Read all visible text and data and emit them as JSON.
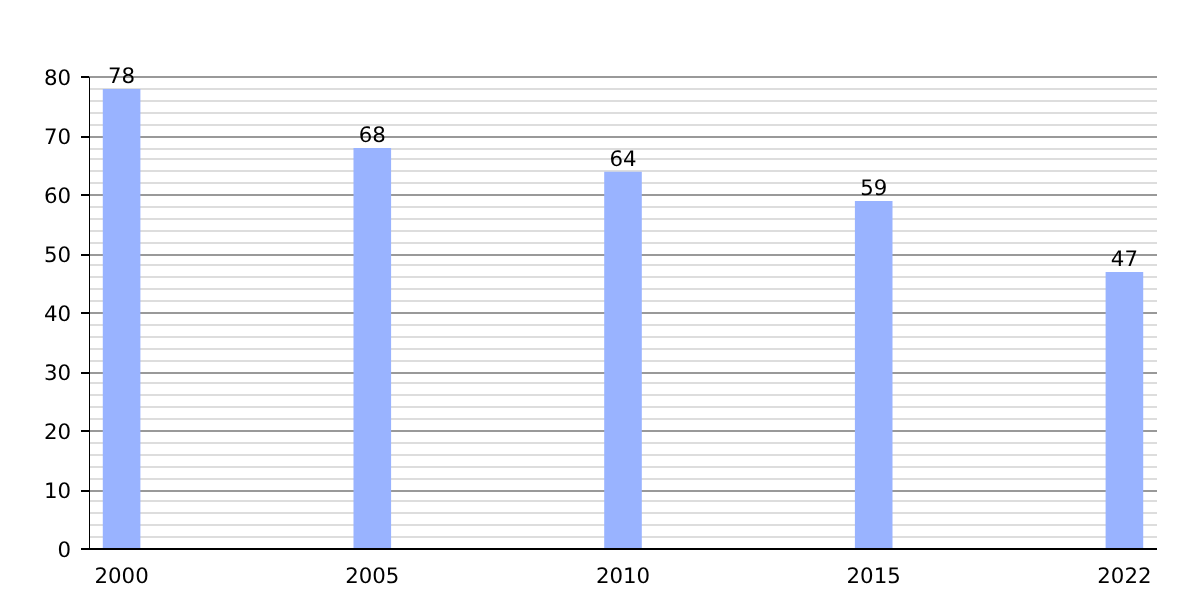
{
  "chart_data": {
    "type": "bar",
    "categories": [
      "2000",
      "2005",
      "2010",
      "2015",
      "2022"
    ],
    "values": [
      78,
      68,
      64,
      59,
      47
    ],
    "color": "#99b3ff",
    "data_labels": true,
    "ylim": [
      0,
      80
    ],
    "yticks": [
      0,
      {
        "value": 2,
        "label": null
      },
      {
        "value": 4,
        "label": null
      },
      {
        "value": 6,
        "label": null
      },
      {
        "value": 8,
        "label": null
      },
      10,
      {
        "value": 12,
        "label": null
      },
      {
        "value": 14,
        "label": null
      },
      {
        "value": 16,
        "label": null
      },
      {
        "value": 18,
        "label": null
      },
      20,
      {
        "value": 22,
        "label": null
      },
      {
        "value": 24,
        "label": null
      },
      {
        "value": 26,
        "label": null
      },
      {
        "value": 28,
        "label": null
      },
      30,
      {
        "value": 32,
        "label": null
      },
      {
        "value": 34,
        "label": null
      },
      {
        "value": 36,
        "label": null
      },
      {
        "value": 38,
        "label": null
      },
      40,
      {
        "value": 42,
        "label": null
      },
      {
        "value": 44,
        "label": null
      },
      {
        "value": 46,
        "label": null
      },
      {
        "value": 48,
        "label": null
      },
      50,
      {
        "value": 52,
        "label": null
      },
      {
        "value": 54,
        "label": null
      },
      {
        "value": 56,
        "label": null
      },
      {
        "value": 58,
        "label": null
      },
      60,
      {
        "value": 62,
        "label": null
      },
      {
        "value": 64,
        "label": null
      },
      {
        "value": 66,
        "label": null
      },
      {
        "value": 68,
        "label": null
      },
      70,
      {
        "value": 72,
        "label": null
      },
      {
        "value": 74,
        "label": null
      },
      {
        "value": 76,
        "label": null
      },
      {
        "value": 78,
        "label": null
      },
      80
    ],
    "grid": "y"
  }
}
